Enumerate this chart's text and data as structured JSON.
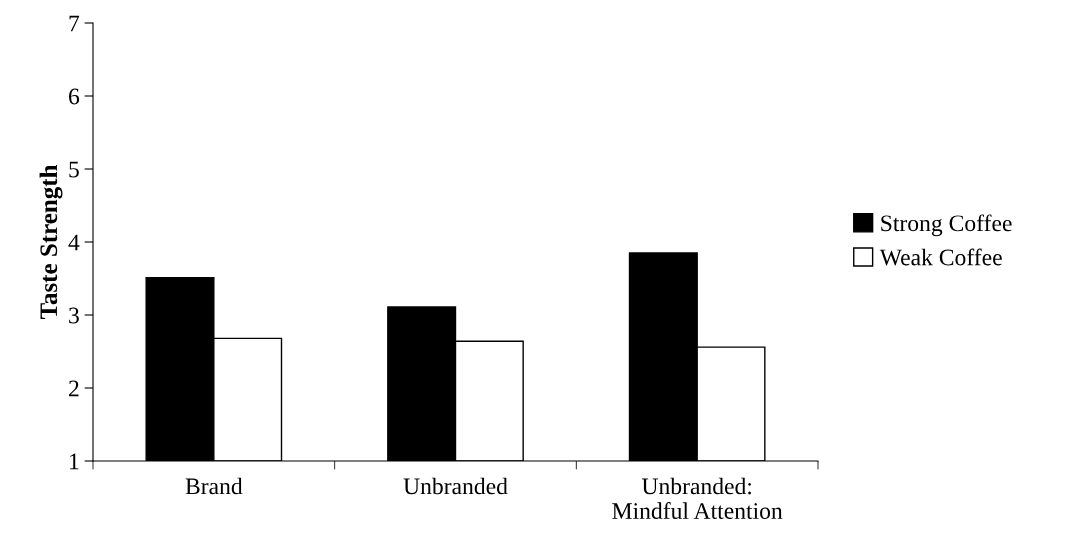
{
  "chart_data": {
    "type": "bar",
    "ylabel": "Taste Strength",
    "categories": [
      "Brand",
      "Unbranded",
      "Unbranded:\nMindful Attention"
    ],
    "series": [
      {
        "name": "Strong Coffee",
        "color": "#000000",
        "values": [
          3.51,
          3.11,
          3.85
        ]
      },
      {
        "name": "Weak Coffee",
        "color": "#ffffff",
        "values": [
          2.68,
          2.64,
          2.56
        ]
      }
    ],
    "ylim": [
      1,
      7
    ],
    "yticks": [
      1,
      2,
      3,
      4,
      5,
      6,
      7
    ],
    "grid": false,
    "legend": "right"
  }
}
